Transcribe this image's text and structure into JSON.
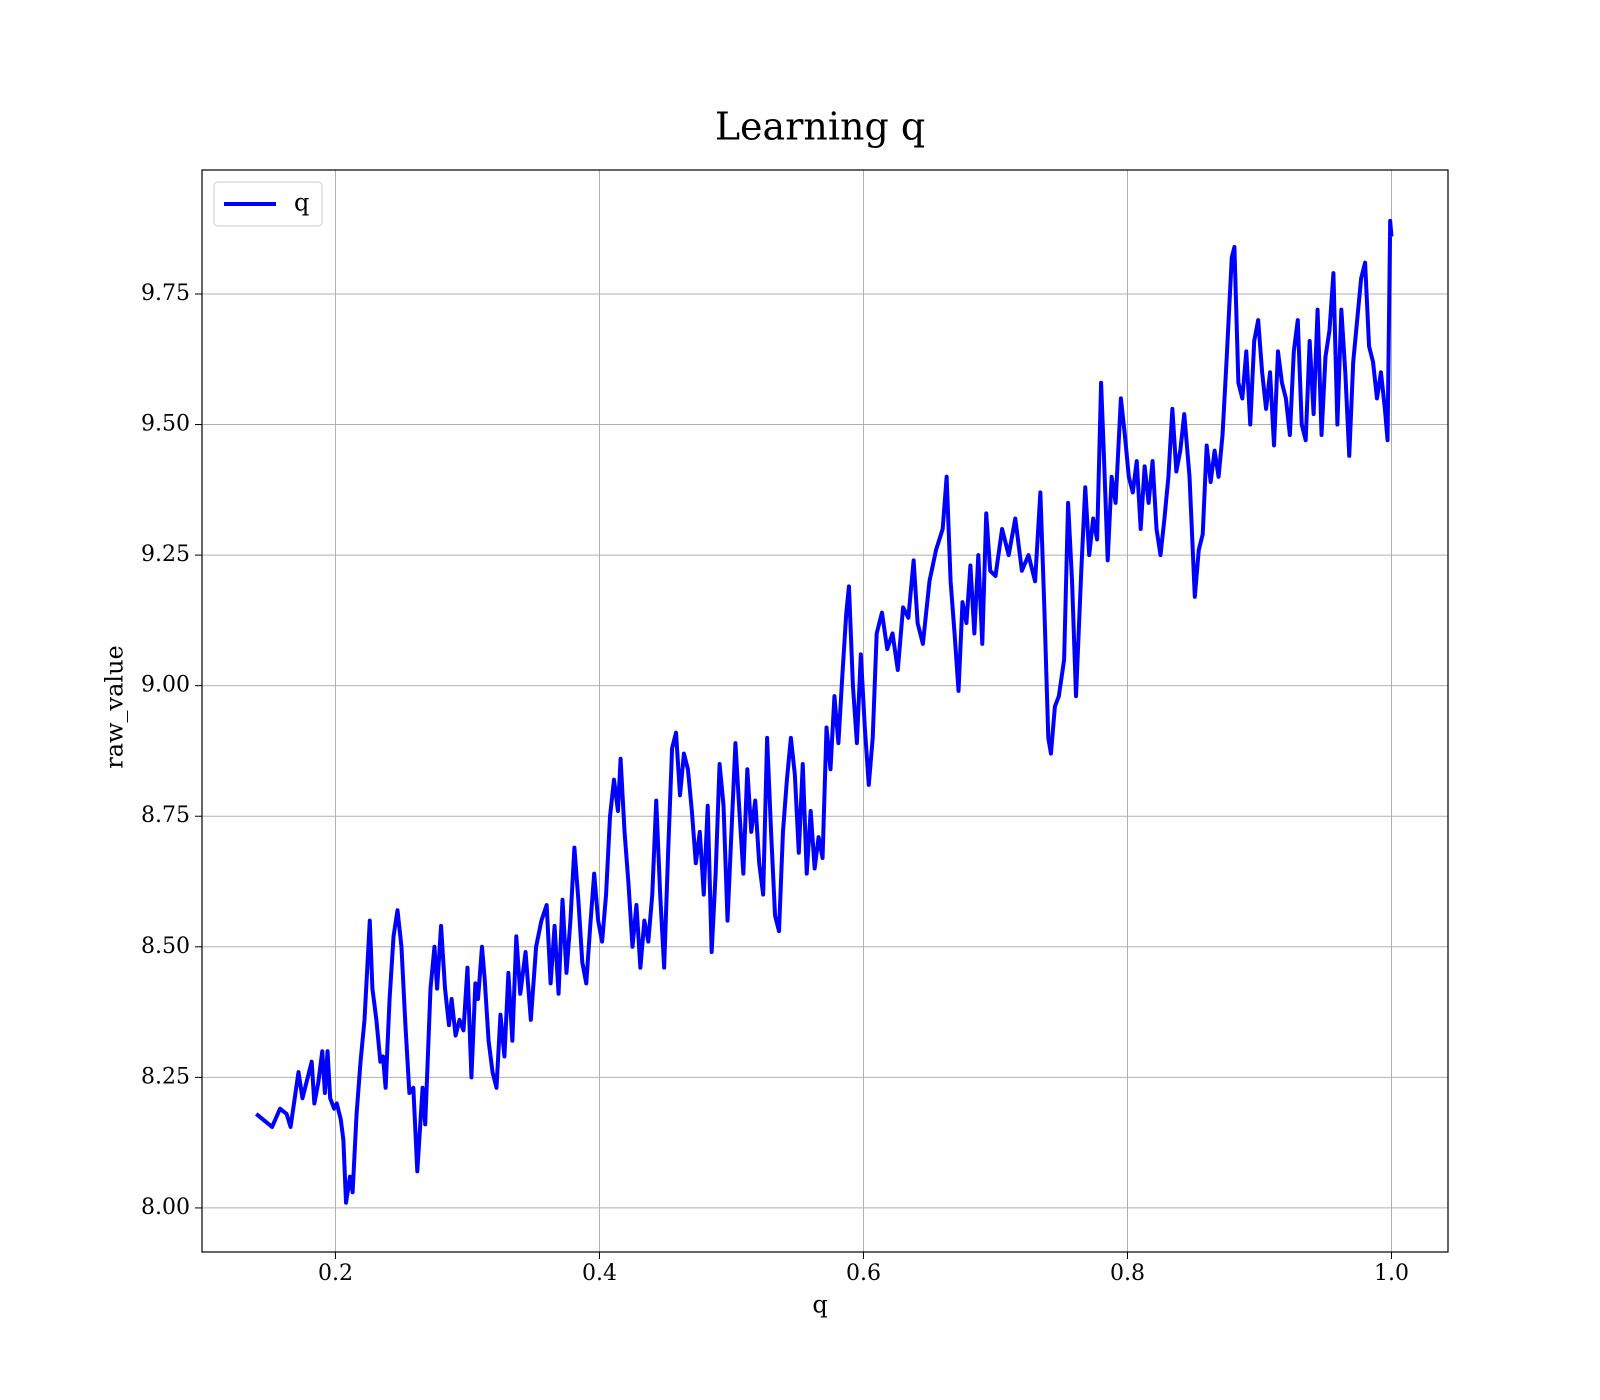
{
  "chart_data": {
    "type": "line",
    "title": "Learning q",
    "x_label": "q",
    "y_label": "raw_value",
    "x": [
      0.14,
      0.152,
      0.158,
      0.163,
      0.166,
      0.172,
      0.175,
      0.178,
      0.182,
      0.184,
      0.187,
      0.19,
      0.192,
      0.194,
      0.196,
      0.199,
      0.201,
      0.204,
      0.206,
      0.208,
      0.211,
      0.213,
      0.216,
      0.219,
      0.222,
      0.226,
      0.228,
      0.231,
      0.234,
      0.236,
      0.238,
      0.241,
      0.244,
      0.247,
      0.25,
      0.253,
      0.256,
      0.259,
      0.262,
      0.266,
      0.268,
      0.272,
      0.275,
      0.277,
      0.28,
      0.283,
      0.286,
      0.288,
      0.291,
      0.294,
      0.297,
      0.3,
      0.303,
      0.306,
      0.308,
      0.311,
      0.313,
      0.316,
      0.319,
      0.322,
      0.325,
      0.328,
      0.331,
      0.334,
      0.337,
      0.34,
      0.344,
      0.348,
      0.352,
      0.356,
      0.36,
      0.363,
      0.366,
      0.369,
      0.372,
      0.375,
      0.378,
      0.381,
      0.384,
      0.387,
      0.39,
      0.393,
      0.396,
      0.399,
      0.402,
      0.405,
      0.408,
      0.411,
      0.414,
      0.416,
      0.419,
      0.422,
      0.425,
      0.428,
      0.431,
      0.434,
      0.437,
      0.44,
      0.443,
      0.446,
      0.449,
      0.452,
      0.455,
      0.458,
      0.461,
      0.464,
      0.467,
      0.47,
      0.473,
      0.476,
      0.479,
      0.482,
      0.485,
      0.488,
      0.491,
      0.494,
      0.497,
      0.5,
      0.503,
      0.506,
      0.509,
      0.512,
      0.515,
      0.518,
      0.521,
      0.524,
      0.527,
      0.53,
      0.533,
      0.536,
      0.539,
      0.542,
      0.545,
      0.548,
      0.551,
      0.554,
      0.557,
      0.56,
      0.563,
      0.566,
      0.569,
      0.572,
      0.575,
      0.578,
      0.581,
      0.584,
      0.587,
      0.589,
      0.592,
      0.595,
      0.598,
      0.601,
      0.604,
      0.607,
      0.61,
      0.614,
      0.618,
      0.622,
      0.626,
      0.63,
      0.634,
      0.638,
      0.641,
      0.645,
      0.65,
      0.655,
      0.66,
      0.663,
      0.666,
      0.669,
      0.672,
      0.675,
      0.678,
      0.681,
      0.684,
      0.687,
      0.69,
      0.693,
      0.696,
      0.7,
      0.705,
      0.71,
      0.715,
      0.72,
      0.725,
      0.73,
      0.734,
      0.737,
      0.74,
      0.742,
      0.745,
      0.748,
      0.752,
      0.755,
      0.758,
      0.761,
      0.765,
      0.768,
      0.771,
      0.774,
      0.777,
      0.78,
      0.782,
      0.785,
      0.788,
      0.791,
      0.795,
      0.798,
      0.801,
      0.804,
      0.807,
      0.81,
      0.813,
      0.816,
      0.819,
      0.822,
      0.825,
      0.828,
      0.831,
      0.834,
      0.837,
      0.84,
      0.843,
      0.847,
      0.851,
      0.854,
      0.857,
      0.86,
      0.863,
      0.866,
      0.869,
      0.872,
      0.875,
      0.877,
      0.879,
      0.881,
      0.884,
      0.887,
      0.89,
      0.893,
      0.896,
      0.899,
      0.902,
      0.905,
      0.908,
      0.911,
      0.914,
      0.917,
      0.92,
      0.923,
      0.926,
      0.929,
      0.932,
      0.935,
      0.938,
      0.941,
      0.944,
      0.947,
      0.95,
      0.953,
      0.956,
      0.959,
      0.962,
      0.965,
      0.968,
      0.971,
      0.974,
      0.977,
      0.98,
      0.983,
      0.986,
      0.989,
      0.992,
      0.995,
      0.997,
      0.999,
      1.0
    ],
    "series": [
      {
        "name": "q",
        "color": "#0000ff",
        "values": [
          8.18,
          8.155,
          8.19,
          8.18,
          8.155,
          8.26,
          8.21,
          8.24,
          8.28,
          8.2,
          8.24,
          8.3,
          8.22,
          8.3,
          8.21,
          8.19,
          8.2,
          8.17,
          8.13,
          8.01,
          8.06,
          8.03,
          8.18,
          8.28,
          8.36,
          8.55,
          8.42,
          8.36,
          8.28,
          8.29,
          8.23,
          8.4,
          8.52,
          8.57,
          8.5,
          8.35,
          8.22,
          8.23,
          8.07,
          8.23,
          8.16,
          8.42,
          8.5,
          8.42,
          8.54,
          8.42,
          8.35,
          8.4,
          8.33,
          8.36,
          8.34,
          8.46,
          8.25,
          8.43,
          8.4,
          8.5,
          8.44,
          8.32,
          8.26,
          8.23,
          8.37,
          8.29,
          8.45,
          8.32,
          8.52,
          8.41,
          8.49,
          8.36,
          8.5,
          8.55,
          8.58,
          8.43,
          8.54,
          8.41,
          8.59,
          8.45,
          8.55,
          8.69,
          8.59,
          8.47,
          8.43,
          8.54,
          8.64,
          8.55,
          8.51,
          8.6,
          8.75,
          8.82,
          8.76,
          8.86,
          8.72,
          8.62,
          8.5,
          8.58,
          8.46,
          8.55,
          8.51,
          8.6,
          8.78,
          8.6,
          8.46,
          8.68,
          8.88,
          8.91,
          8.79,
          8.87,
          8.84,
          8.76,
          8.66,
          8.72,
          8.6,
          8.77,
          8.49,
          8.64,
          8.85,
          8.77,
          8.55,
          8.72,
          8.89,
          8.76,
          8.64,
          8.84,
          8.72,
          8.78,
          8.66,
          8.6,
          8.9,
          8.72,
          8.56,
          8.53,
          8.72,
          8.82,
          8.9,
          8.83,
          8.68,
          8.85,
          8.64,
          8.76,
          8.65,
          8.71,
          8.67,
          8.92,
          8.84,
          8.98,
          8.89,
          9.02,
          9.14,
          9.19,
          9.0,
          8.89,
          9.06,
          8.92,
          8.81,
          8.9,
          9.1,
          9.14,
          9.07,
          9.1,
          9.03,
          9.15,
          9.13,
          9.24,
          9.12,
          9.08,
          9.2,
          9.26,
          9.3,
          9.4,
          9.2,
          9.1,
          8.99,
          9.16,
          9.12,
          9.23,
          9.1,
          9.25,
          9.08,
          9.33,
          9.22,
          9.21,
          9.3,
          9.25,
          9.32,
          9.22,
          9.25,
          9.2,
          9.37,
          9.15,
          8.9,
          8.87,
          8.96,
          8.98,
          9.05,
          9.35,
          9.2,
          8.98,
          9.22,
          9.38,
          9.25,
          9.32,
          9.28,
          9.58,
          9.45,
          9.24,
          9.4,
          9.35,
          9.55,
          9.48,
          9.4,
          9.37,
          9.43,
          9.3,
          9.42,
          9.35,
          9.43,
          9.3,
          9.25,
          9.32,
          9.4,
          9.53,
          9.41,
          9.45,
          9.52,
          9.4,
          9.17,
          9.26,
          9.29,
          9.46,
          9.39,
          9.45,
          9.4,
          9.48,
          9.62,
          9.72,
          9.82,
          9.84,
          9.58,
          9.55,
          9.64,
          9.5,
          9.66,
          9.7,
          9.6,
          9.53,
          9.6,
          9.46,
          9.64,
          9.58,
          9.55,
          9.48,
          9.64,
          9.7,
          9.5,
          9.47,
          9.66,
          9.52,
          9.72,
          9.48,
          9.63,
          9.68,
          9.79,
          9.5,
          9.72,
          9.6,
          9.44,
          9.62,
          9.7,
          9.78,
          9.81,
          9.65,
          9.62,
          9.55,
          9.6,
          9.53,
          9.47,
          9.89,
          9.86
        ]
      }
    ],
    "xlim": [
      0.0989,
      1.0428
    ],
    "ylim": [
      7.9156,
      9.9874
    ],
    "xticks": [
      0.2,
      0.4,
      0.6,
      0.8,
      {
        "value": 1.0,
        "label": "1.0"
      }
    ],
    "yticks": [
      {
        "value": 8.0,
        "label": "8.00"
      },
      {
        "value": 8.25,
        "label": "8.25"
      },
      {
        "value": 8.5,
        "label": "8.50"
      },
      {
        "value": 8.75,
        "label": "8.75"
      },
      {
        "value": 9.0,
        "label": "9.00"
      },
      {
        "value": 9.25,
        "label": "9.25"
      },
      {
        "value": 9.5,
        "label": "9.50"
      },
      {
        "value": 9.75,
        "label": "9.75"
      }
    ],
    "grid": true,
    "legend": "upper-left"
  }
}
